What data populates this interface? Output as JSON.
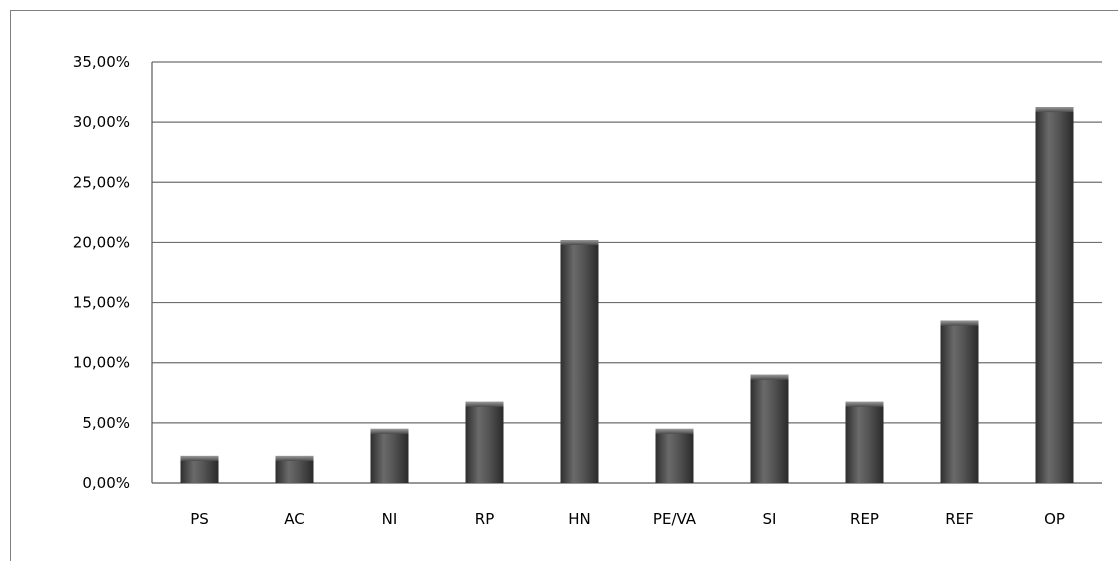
{
  "chart_data": {
    "type": "bar",
    "title": "",
    "xlabel": "",
    "ylabel": "",
    "categories": [
      "PS",
      "AC",
      "NI",
      "RP",
      "HN",
      "PE/VA",
      "SI",
      "REP",
      "REF",
      "OP"
    ],
    "values": [
      2.25,
      2.25,
      4.5,
      6.75,
      20.2,
      4.5,
      9.0,
      6.75,
      13.5,
      31.25
    ],
    "ylim": [
      0,
      35
    ],
    "yticks": [
      "0,00%",
      "5,00%",
      "10,00%",
      "15,00%",
      "20,00%",
      "25,00%",
      "30,00%",
      "35,00%"
    ],
    "grid": true,
    "legend": false,
    "bar_color": "#4a4a4a"
  }
}
